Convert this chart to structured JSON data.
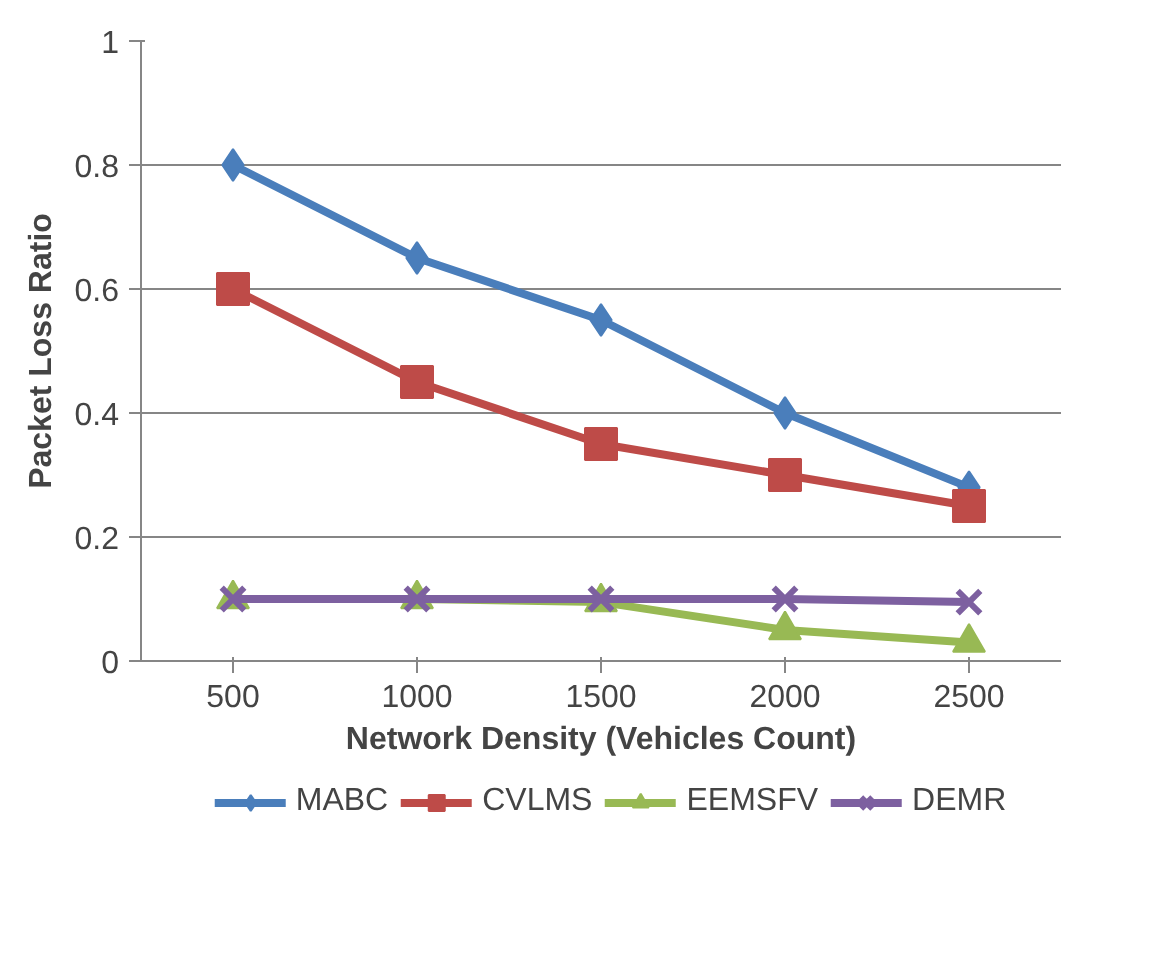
{
  "chart_data": {
    "type": "line",
    "xlabel": "Network Density (Vehicles Count)",
    "ylabel": "Packet Loss Ratio",
    "categories": [
      "500",
      "1000",
      "1500",
      "2000",
      "2500"
    ],
    "ylim": [
      0,
      1
    ],
    "yticks": [
      0,
      0.2,
      0.4,
      0.6,
      0.8,
      1
    ],
    "grid": "y",
    "legend": "bottom",
    "line_style": "solid",
    "series": [
      {
        "name": "MABC",
        "color": "#4a7ebb",
        "marker": "diamond",
        "values": [
          0.8,
          0.65,
          0.55,
          0.4,
          0.28
        ]
      },
      {
        "name": "CVLMS",
        "color": "#be4b48",
        "marker": "square",
        "values": [
          0.6,
          0.45,
          0.35,
          0.3,
          0.25
        ]
      },
      {
        "name": "EEMSFV",
        "color": "#98b954",
        "marker": "triangle",
        "values": [
          0.1,
          0.1,
          0.095,
          0.05,
          0.03
        ]
      },
      {
        "name": "DEMR",
        "color": "#7d60a0",
        "marker": "cross",
        "values": [
          0.1,
          0.1,
          0.1,
          0.1,
          0.095
        ]
      }
    ]
  }
}
